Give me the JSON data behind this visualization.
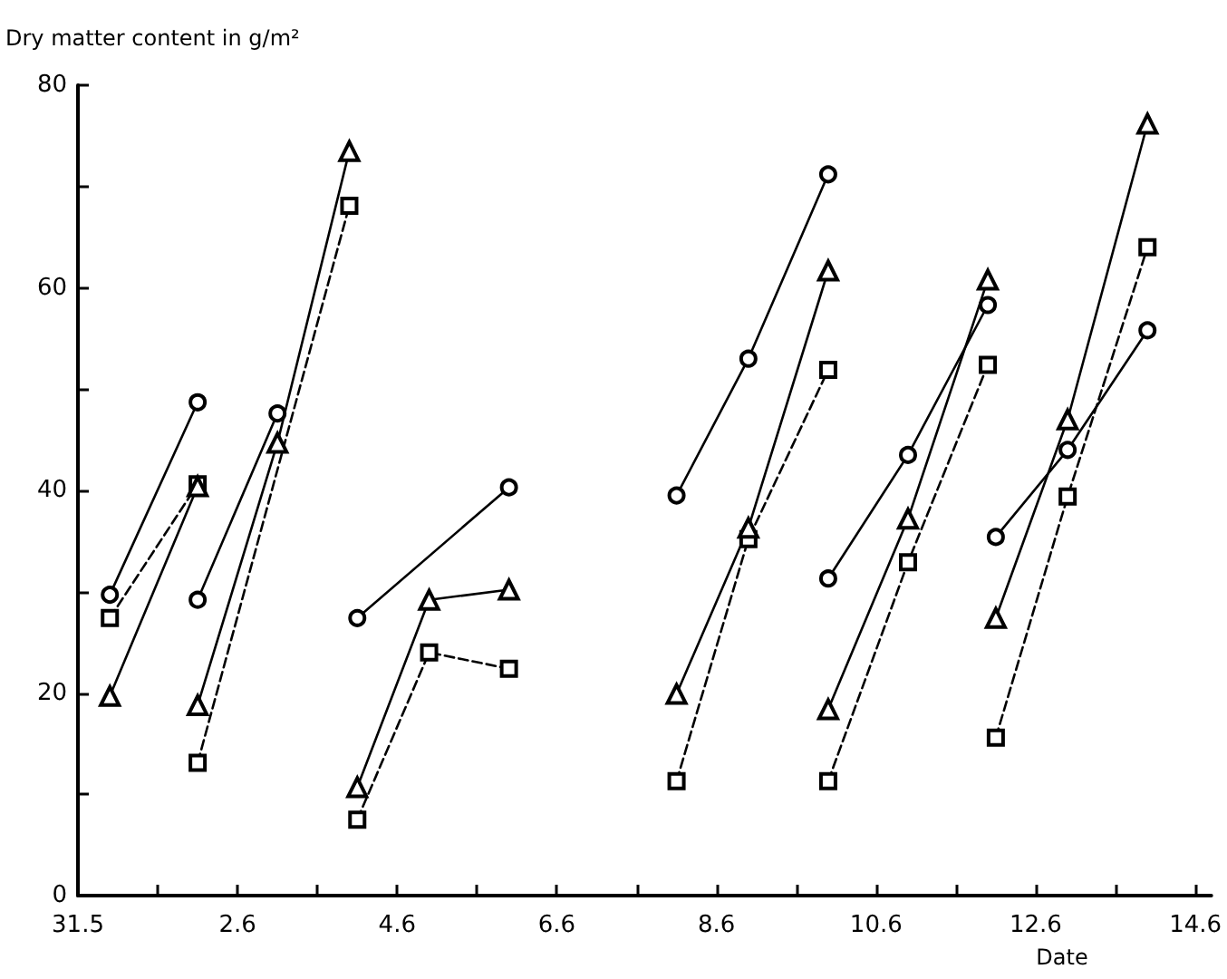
{
  "chart_data": {
    "type": "line",
    "ylabel": "Dry matter content in g/m²",
    "xlabel": "Date",
    "xlim": [
      "--05-31",
      "--06-14T04:48"
    ],
    "ylim": [
      0,
      80
    ],
    "xticks": [
      {
        "value": "--05-31",
        "label": "31.5"
      },
      {
        "value": "--06-01",
        "label": null
      },
      {
        "value": "--06-02",
        "label": "2.6"
      },
      {
        "value": "--06-03",
        "label": null
      },
      {
        "value": "--06-04",
        "label": "4.6"
      },
      {
        "value": "--06-05",
        "label": null
      },
      {
        "value": "--06-06",
        "label": "6.6"
      },
      {
        "value": "--06-07",
        "label": null
      },
      {
        "value": "--06-08",
        "label": "8.6"
      },
      {
        "value": "--06-09",
        "label": null
      },
      {
        "value": "--06-10",
        "label": "10.6"
      },
      {
        "value": "--06-11",
        "label": null
      },
      {
        "value": "--06-12",
        "label": "12.6"
      },
      {
        "value": "--06-13",
        "label": null
      },
      {
        "value": "--06-14",
        "label": "14.6"
      }
    ],
    "yticks": [
      0,
      {
        "value": 10,
        "label": null
      },
      20,
      {
        "value": 30,
        "label": null
      },
      40,
      {
        "value": 50,
        "label": null
      },
      60,
      {
        "value": 70,
        "label": null
      },
      80
    ],
    "series": [
      {
        "color": "#000000",
        "marker": "circle",
        "line_style": "solid",
        "x": [
          "--05-31T09:36",
          "--06-01T12:00"
        ],
        "values": [
          29.7,
          48.7
        ]
      },
      {
        "color": "#000000",
        "marker": "square",
        "line_style": "dashed",
        "x": [
          "--05-31T09:36",
          "--06-01T12:00"
        ],
        "values": [
          27.4,
          40.6
        ]
      },
      {
        "color": "#000000",
        "marker": "triangle",
        "line_style": "solid",
        "x": [
          "--05-31T09:36",
          "--06-01T12:00"
        ],
        "values": [
          19.7,
          40.4
        ]
      },
      {
        "color": "#000000",
        "marker": "circle",
        "line_style": "solid",
        "x": [
          "--06-01T12:00",
          "--06-02T12:00"
        ],
        "values": [
          29.2,
          47.6
        ]
      },
      {
        "color": "#000000",
        "marker": "square",
        "line_style": "dashed",
        "x": [
          "--06-01T12:00",
          "--06-03T09:36"
        ],
        "values": [
          13.1,
          68.1
        ]
      },
      {
        "color": "#000000",
        "marker": "triangle",
        "line_style": "solid",
        "x": [
          "--06-01T12:00",
          "--06-02T12:00",
          "--06-03T09:36"
        ],
        "values": [
          18.8,
          44.7,
          73.5
        ]
      },
      {
        "color": "#000000",
        "marker": "circle",
        "line_style": "solid",
        "x": [
          "--06-03T12:00",
          "--06-05T09:36"
        ],
        "values": [
          27.4,
          40.3
        ]
      },
      {
        "color": "#000000",
        "marker": "square",
        "line_style": "dashed",
        "x": [
          "--06-03T12:00",
          "--06-04T09:36",
          "--06-05T09:36"
        ],
        "values": [
          7.5,
          24.0,
          22.4
        ]
      },
      {
        "color": "#000000",
        "marker": "triangle",
        "line_style": "solid",
        "x": [
          "--06-03T12:00",
          "--06-04T09:36",
          "--06-05T09:36"
        ],
        "values": [
          10.7,
          29.2,
          30.2
        ]
      },
      {
        "color": "#000000",
        "marker": "circle",
        "line_style": "solid",
        "x": [
          "--06-07T12:00",
          "--06-08T09:36",
          "--06-09T09:36"
        ],
        "values": [
          39.5,
          53.0,
          71.2
        ]
      },
      {
        "color": "#000000",
        "marker": "square",
        "line_style": "dashed",
        "x": [
          "--06-07T12:00",
          "--06-08T09:36",
          "--06-09T09:36"
        ],
        "values": [
          11.3,
          35.2,
          51.9
        ]
      },
      {
        "color": "#000000",
        "marker": "triangle",
        "line_style": "solid",
        "x": [
          "--06-07T12:00",
          "--06-08T09:36",
          "--06-09T09:36"
        ],
        "values": [
          19.9,
          36.3,
          61.7
        ]
      },
      {
        "color": "#000000",
        "marker": "circle",
        "line_style": "solid",
        "x": [
          "--06-09T09:36",
          "--06-10T09:36",
          "--06-11T09:36"
        ],
        "values": [
          31.3,
          43.5,
          58.3
        ]
      },
      {
        "color": "#000000",
        "marker": "square",
        "line_style": "dashed",
        "x": [
          "--06-09T09:36",
          "--06-10T09:36",
          "--06-11T09:36"
        ],
        "values": [
          11.3,
          32.9,
          52.4
        ]
      },
      {
        "color": "#000000",
        "marker": "triangle",
        "line_style": "solid",
        "x": [
          "--06-09T09:36",
          "--06-10T09:36",
          "--06-11T09:36"
        ],
        "values": [
          18.4,
          37.2,
          60.8
        ]
      },
      {
        "color": "#000000",
        "marker": "circle",
        "line_style": "solid",
        "x": [
          "--06-11T12:00",
          "--06-12T09:36",
          "--06-13T09:36"
        ],
        "values": [
          35.4,
          44.0,
          55.8
        ]
      },
      {
        "color": "#000000",
        "marker": "square",
        "line_style": "dashed",
        "x": [
          "--06-11T12:00",
          "--06-12T09:36",
          "--06-13T09:36"
        ],
        "values": [
          15.6,
          39.4,
          64.0
        ]
      },
      {
        "color": "#000000",
        "marker": "triangle",
        "line_style": "solid",
        "x": [
          "--06-11T12:00",
          "--06-12T09:36",
          "--06-13T09:36"
        ],
        "values": [
          27.4,
          47.0,
          76.2
        ]
      }
    ]
  }
}
